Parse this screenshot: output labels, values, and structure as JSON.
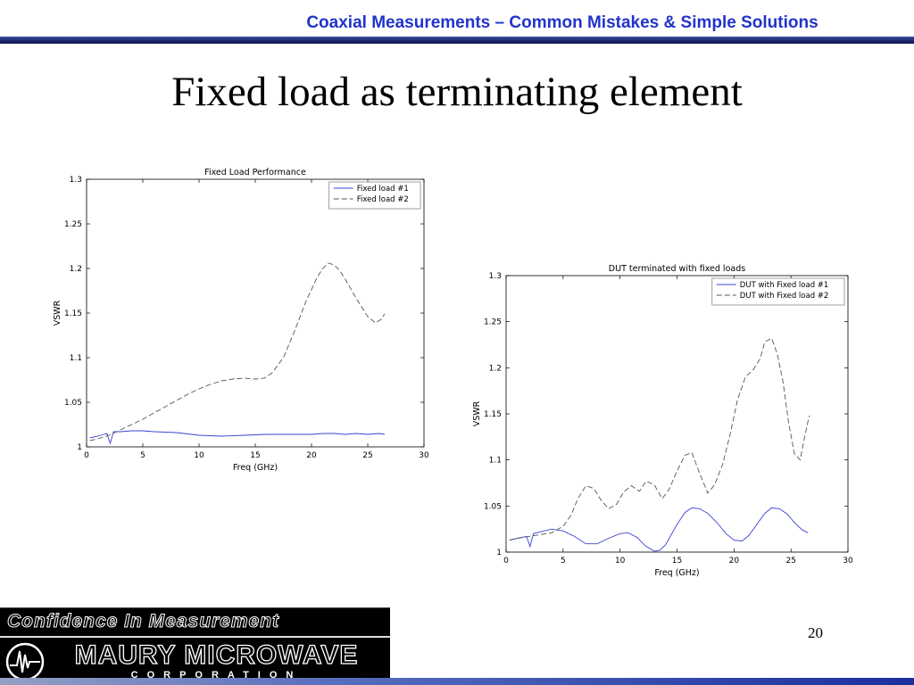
{
  "slide": {
    "header": "Coaxial Measurements – Common Mistakes & Simple Solutions",
    "title": "Fixed load as terminating element",
    "page_number": "20"
  },
  "footer": {
    "tagline": "Confidence In Measurement",
    "company": "MAURY MICROWAVE",
    "subtitle": "CORPORATION",
    "logo_icon": "waveform-circle-icon"
  },
  "colors": {
    "header_text": "#2233cc",
    "divider_navy": "#1b2a6e",
    "line_blue": "#3b43cf",
    "line_dashed": "#555555",
    "footer_bg": "#000000"
  },
  "chart_data": [
    {
      "type": "line",
      "title": "Fixed Load Performance",
      "xlabel": "Freq (GHz)",
      "ylabel": "VSWR",
      "xlim": [
        0,
        30
      ],
      "ylim": [
        1,
        1.3
      ],
      "xticks": [
        0,
        5,
        10,
        15,
        20,
        25,
        30
      ],
      "yticks": [
        1,
        1.05,
        1.1,
        1.15,
        1.2,
        1.25,
        1.3
      ],
      "grid": false,
      "legend_position": "top-right",
      "series": [
        {
          "name": "Fixed load #1",
          "style": "solid",
          "color": "#3b43cf",
          "x": [
            0.3,
            1,
            1.8,
            2.1,
            2.4,
            3,
            4,
            5,
            6,
            8,
            10,
            12,
            14,
            16,
            18,
            20,
            21,
            22,
            23,
            24,
            25,
            26,
            26.5
          ],
          "y": [
            1.01,
            1.012,
            1.015,
            1.004,
            1.017,
            1.017,
            1.018,
            1.018,
            1.017,
            1.016,
            1.013,
            1.012,
            1.013,
            1.014,
            1.014,
            1.014,
            1.015,
            1.015,
            1.014,
            1.015,
            1.014,
            1.015,
            1.014
          ]
        },
        {
          "name": "Fixed load #2",
          "style": "dashed",
          "color": "#555555",
          "x": [
            0.3,
            1,
            2,
            3,
            4,
            5,
            6,
            7,
            8,
            9,
            10,
            11,
            12,
            13,
            14,
            15,
            15.8,
            16.5,
            17.5,
            18.5,
            19.5,
            20.5,
            21,
            21.5,
            22,
            22.5,
            23,
            24,
            25,
            25.7,
            26.2,
            26.5
          ],
          "y": [
            1.007,
            1.009,
            1.013,
            1.019,
            1.025,
            1.031,
            1.038,
            1.045,
            1.052,
            1.059,
            1.065,
            1.07,
            1.074,
            1.076,
            1.077,
            1.076,
            1.077,
            1.083,
            1.1,
            1.13,
            1.163,
            1.19,
            1.2,
            1.206,
            1.204,
            1.198,
            1.188,
            1.166,
            1.146,
            1.139,
            1.143,
            1.149
          ]
        }
      ]
    },
    {
      "type": "line",
      "title": "DUT terminated with fixed loads",
      "xlabel": "Freq (GHz)",
      "ylabel": "VSWR",
      "xlim": [
        0,
        30
      ],
      "ylim": [
        1,
        1.3
      ],
      "xticks": [
        0,
        5,
        10,
        15,
        20,
        25,
        30
      ],
      "yticks": [
        1,
        1.05,
        1.1,
        1.15,
        1.2,
        1.25,
        1.3
      ],
      "grid": false,
      "legend_position": "top-right",
      "series": [
        {
          "name": "DUT with Fixed load #1",
          "style": "solid",
          "color": "#3b43cf",
          "x": [
            0.3,
            1,
            1.8,
            2.1,
            2.4,
            3,
            4,
            5,
            6,
            7,
            8,
            9,
            10,
            10.7,
            11.5,
            12.2,
            13,
            13.5,
            14,
            15,
            15.7,
            16.3,
            17,
            17.7,
            18.5,
            19.3,
            20,
            20.7,
            21.3,
            22,
            22.7,
            23.3,
            24,
            24.7,
            25.3,
            26,
            26.5
          ],
          "y": [
            1.013,
            1.015,
            1.017,
            1.006,
            1.02,
            1.022,
            1.025,
            1.023,
            1.017,
            1.009,
            1.009,
            1.015,
            1.02,
            1.021,
            1.016,
            1.007,
            1.001,
            1.002,
            1.008,
            1.03,
            1.043,
            1.048,
            1.047,
            1.042,
            1.032,
            1.02,
            1.013,
            1.012,
            1.018,
            1.03,
            1.042,
            1.048,
            1.047,
            1.041,
            1.032,
            1.024,
            1.021
          ]
        },
        {
          "name": "DUT with Fixed load #2",
          "style": "dashed",
          "color": "#555555",
          "x": [
            0.3,
            1,
            2,
            3,
            4,
            5,
            5.7,
            6.3,
            7,
            7.7,
            8.3,
            9,
            9.7,
            10.3,
            11,
            11.7,
            12.3,
            13,
            13.7,
            14.3,
            15,
            15.7,
            16.3,
            17,
            17.7,
            18.3,
            19,
            19.7,
            20.3,
            21,
            21.7,
            22.3,
            22.7,
            23.3,
            23.8,
            24.3,
            24.8,
            25.3,
            25.8,
            26.2,
            26.6
          ],
          "y": [
            1.013,
            1.015,
            1.017,
            1.019,
            1.021,
            1.028,
            1.04,
            1.058,
            1.072,
            1.069,
            1.057,
            1.047,
            1.052,
            1.065,
            1.072,
            1.066,
            1.077,
            1.073,
            1.058,
            1.068,
            1.088,
            1.105,
            1.108,
            1.085,
            1.064,
            1.073,
            1.095,
            1.13,
            1.165,
            1.19,
            1.198,
            1.21,
            1.228,
            1.232,
            1.215,
            1.185,
            1.14,
            1.107,
            1.1,
            1.125,
            1.148
          ]
        }
      ]
    }
  ]
}
